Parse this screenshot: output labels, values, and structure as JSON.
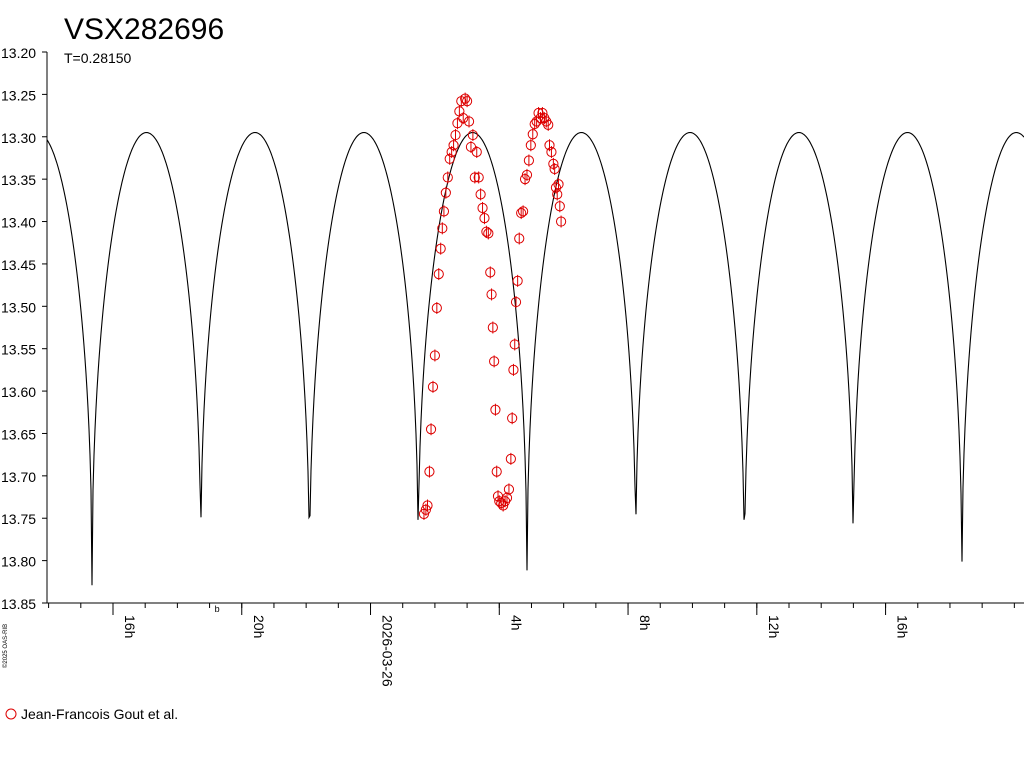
{
  "chart_data": {
    "type": "scatter",
    "title": "VSX282696",
    "subtitle": "T=0.28150",
    "credit": "©2025 OAS-RIB",
    "ylim": [
      13.2,
      13.85
    ],
    "y_inverted": true,
    "y_ticks": [
      "13.20",
      "13.25",
      "13.30",
      "13.35",
      "13.40",
      "13.45",
      "13.50",
      "13.55",
      "13.60",
      "13.65",
      "13.70",
      "13.75",
      "13.80",
      "13.85"
    ],
    "x_ticks": [
      {
        "label": "16h",
        "hours": -8
      },
      {
        "label": "20h",
        "hours": -4
      },
      {
        "label": "2026-03-26",
        "hours": 0
      },
      {
        "label": "4h",
        "hours": 4
      },
      {
        "label": "8h",
        "hours": 8
      },
      {
        "label": "12h",
        "hours": 12
      },
      {
        "label": "16h",
        "hours": 16
      }
    ],
    "x_range_hours": [
      -10.05,
      20.3
    ],
    "extra_mark": {
      "label": "b",
      "hours": -4.75
    },
    "grid": false,
    "legend_position": "bottom-left",
    "colors": {
      "model": "#000000",
      "observations": "#dd0000",
      "axis": "#000000"
    },
    "model_curve": {
      "name": "",
      "period_hours": 6.756,
      "primary_min_hours": 4.86,
      "min_mag_primary": 13.84,
      "min_mag_secondary": 13.815,
      "max_mag": 13.295
    },
    "series": [
      {
        "name": "Jean-Francois Gout et al.",
        "marker": "circle",
        "points": [
          [
            1.66,
            13.745
          ],
          [
            1.72,
            13.74
          ],
          [
            1.77,
            13.735
          ],
          [
            1.83,
            13.695
          ],
          [
            1.88,
            13.645
          ],
          [
            1.94,
            13.595
          ],
          [
            2.0,
            13.558
          ],
          [
            2.06,
            13.502
          ],
          [
            2.12,
            13.462
          ],
          [
            2.18,
            13.432
          ],
          [
            2.23,
            13.408
          ],
          [
            2.28,
            13.388
          ],
          [
            2.34,
            13.366
          ],
          [
            2.4,
            13.348
          ],
          [
            2.46,
            13.326
          ],
          [
            2.52,
            13.318
          ],
          [
            2.58,
            13.31
          ],
          [
            2.64,
            13.298
          ],
          [
            2.7,
            13.284
          ],
          [
            2.76,
            13.27
          ],
          [
            2.82,
            13.258
          ],
          [
            2.88,
            13.278
          ],
          [
            2.94,
            13.255
          ],
          [
            3.0,
            13.258
          ],
          [
            3.06,
            13.282
          ],
          [
            3.12,
            13.312
          ],
          [
            3.18,
            13.298
          ],
          [
            3.24,
            13.348
          ],
          [
            3.3,
            13.318
          ],
          [
            3.36,
            13.348
          ],
          [
            3.42,
            13.368
          ],
          [
            3.48,
            13.384
          ],
          [
            3.54,
            13.396
          ],
          [
            3.6,
            13.412
          ],
          [
            3.66,
            13.414
          ],
          [
            3.72,
            13.46
          ],
          [
            3.76,
            13.486
          ],
          [
            3.8,
            13.525
          ],
          [
            3.84,
            13.565
          ],
          [
            3.88,
            13.622
          ],
          [
            3.92,
            13.695
          ],
          [
            3.96,
            13.724
          ],
          [
            4.0,
            13.73
          ],
          [
            4.06,
            13.732
          ],
          [
            4.12,
            13.735
          ],
          [
            4.18,
            13.73
          ],
          [
            4.24,
            13.726
          ],
          [
            4.3,
            13.716
          ],
          [
            4.36,
            13.68
          ],
          [
            4.4,
            13.632
          ],
          [
            4.44,
            13.575
          ],
          [
            4.48,
            13.545
          ],
          [
            4.52,
            13.495
          ],
          [
            4.57,
            13.47
          ],
          [
            4.62,
            13.42
          ],
          [
            4.68,
            13.39
          ],
          [
            4.74,
            13.388
          ],
          [
            4.8,
            13.35
          ],
          [
            4.86,
            13.345
          ],
          [
            4.92,
            13.328
          ],
          [
            4.98,
            13.31
          ],
          [
            5.04,
            13.297
          ],
          [
            5.1,
            13.285
          ],
          [
            5.16,
            13.282
          ],
          [
            5.22,
            13.272
          ],
          [
            5.28,
            13.278
          ],
          [
            5.34,
            13.272
          ],
          [
            5.4,
            13.278
          ],
          [
            5.46,
            13.282
          ],
          [
            5.52,
            13.286
          ],
          [
            5.56,
            13.31
          ],
          [
            5.62,
            13.318
          ],
          [
            5.68,
            13.332
          ],
          [
            5.72,
            13.338
          ],
          [
            5.76,
            13.36
          ],
          [
            5.8,
            13.368
          ],
          [
            5.84,
            13.356
          ],
          [
            5.88,
            13.382
          ],
          [
            5.92,
            13.4
          ]
        ]
      }
    ]
  }
}
